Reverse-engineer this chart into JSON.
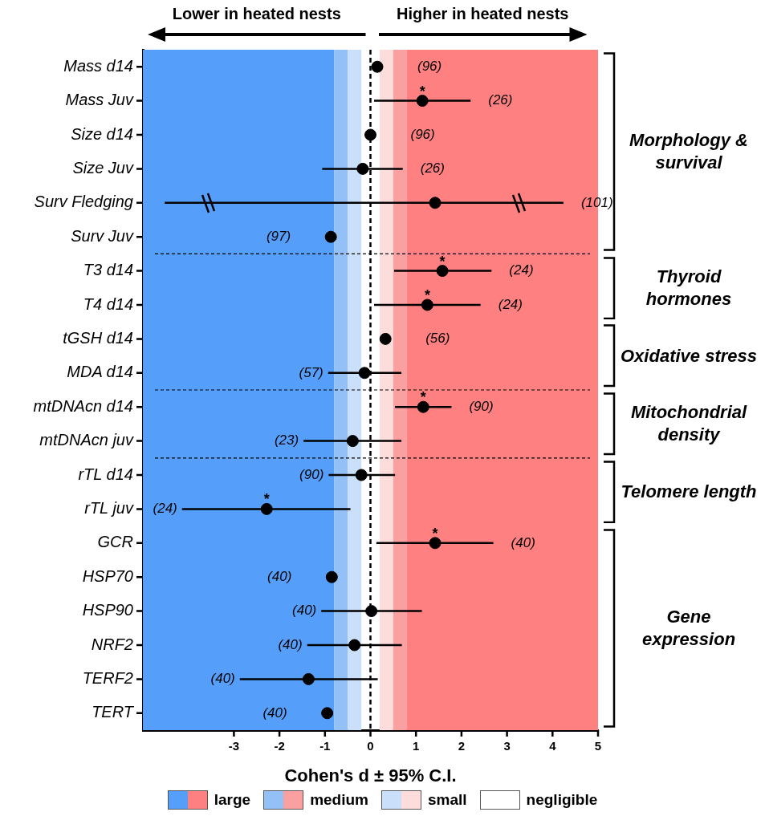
{
  "chart_data": {
    "type": "scatter",
    "orientation": "horizontal",
    "xlabel": "Cohen's d ± 95% C.I.",
    "categories": [
      "Mass d14",
      "Mass Juv",
      "Size d14",
      "Size Juv",
      "Surv Fledging",
      "Surv Juv",
      "T3 d14",
      "T4 d14",
      "tGSH d14",
      "MDA d14",
      "mtDNAcn d14",
      "mtDNAcn juv",
      "rTL d14",
      "rTL juv",
      "GCR",
      "HSP70",
      "HSP90",
      "NRF2",
      "TERF2",
      "TERT"
    ],
    "values": [
      0.15,
      1.14,
      0.0,
      -0.17,
      1.42,
      -0.87,
      1.58,
      1.25,
      0.33,
      -0.13,
      1.16,
      -0.39,
      -0.2,
      -2.28,
      1.42,
      -0.85,
      0.02,
      -0.35,
      -1.36,
      -0.95
    ],
    "errors": [
      null,
      [
        0.08,
        2.2
      ],
      null,
      [
        -1.06,
        0.71
      ],
      [
        -4.52,
        4.24
      ],
      null,
      [
        0.52,
        2.66
      ],
      [
        0.08,
        2.42
      ],
      null,
      [
        -0.93,
        0.68
      ],
      [
        0.54,
        1.78
      ],
      [
        -1.47,
        0.68
      ],
      [
        -0.92,
        0.54
      ],
      [
        -4.14,
        -0.44
      ],
      [
        0.13,
        2.7
      ],
      null,
      [
        -1.08,
        1.13
      ],
      [
        -1.39,
        0.69
      ],
      [
        -2.87,
        0.16
      ],
      null
    ],
    "value_labels": [
      null,
      "*",
      null,
      null,
      null,
      null,
      "*",
      "*",
      null,
      null,
      "*",
      null,
      null,
      "*",
      "*",
      null,
      null,
      null,
      null,
      null
    ],
    "color": "#000000",
    "marker": "circle",
    "xlim": [
      -5,
      5
    ],
    "xticks": [
      -3,
      -2,
      -1,
      0,
      1,
      2,
      3,
      4,
      5
    ],
    "bands": [
      {
        "axis": "x",
        "from": -5,
        "to": -0.8,
        "color": "#559ffa"
      },
      {
        "axis": "x",
        "from": -0.8,
        "to": -0.5,
        "color": "#94c0f8"
      },
      {
        "axis": "x",
        "from": -0.5,
        "to": -0.2,
        "color": "#cadff9"
      },
      {
        "axis": "x",
        "from": 0.2,
        "to": 0.5,
        "label": "small",
        "color": "#fddcdc"
      },
      {
        "axis": "x",
        "from": 0.5,
        "to": 0.8,
        "label": "medium",
        "color": "#fba0a0"
      },
      {
        "axis": "x",
        "from": 0.8,
        "to": 5,
        "label": "large",
        "color": "#ff8080"
      }
    ],
    "ref_lines": [
      {
        "axis": "x",
        "value": 0,
        "color": "#000000",
        "line_style": "dashed"
      }
    ],
    "legend": "bottom",
    "annotations": [
      "Lower in heated nests",
      "Higher in heated nests",
      "Morphology & survival",
      "Thyroid hormones",
      "Oxidative stress",
      "Mitochondrial density",
      "Telomere length",
      "Gene expression",
      "(96)",
      "(26)",
      "(96)",
      "(26)",
      "(101)",
      "(97)",
      "(24)",
      "(24)",
      "(56)",
      "(57)",
      "(90)",
      "(23)",
      "(90)",
      "(24)",
      "(40)",
      "(40)",
      "(40)",
      "(40)",
      "(40)",
      "(40)",
      "negligible"
    ]
  }
}
